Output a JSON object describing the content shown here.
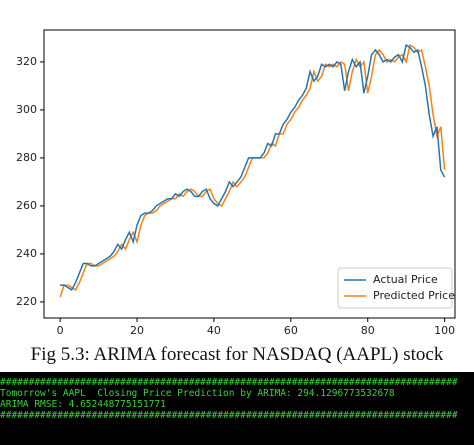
{
  "chart_data": {
    "type": "line",
    "x": [
      0,
      1,
      2,
      3,
      4,
      5,
      6,
      7,
      8,
      9,
      10,
      11,
      12,
      13,
      14,
      15,
      16,
      17,
      18,
      19,
      20,
      21,
      22,
      23,
      24,
      25,
      26,
      27,
      28,
      29,
      30,
      31,
      32,
      33,
      34,
      35,
      36,
      37,
      38,
      39,
      40,
      41,
      42,
      43,
      44,
      45,
      46,
      47,
      48,
      49,
      50,
      51,
      52,
      53,
      54,
      55,
      56,
      57,
      58,
      59,
      60,
      61,
      62,
      63,
      64,
      65,
      66,
      67,
      68,
      69,
      70,
      71,
      72,
      73,
      74,
      75,
      76,
      77,
      78,
      79,
      80,
      81,
      82,
      83,
      84,
      85,
      86,
      87,
      88,
      89,
      90,
      91,
      92,
      93,
      94,
      95,
      96,
      97,
      98,
      99,
      100
    ],
    "series": [
      {
        "name": "Actual Price",
        "color": "#1f77b4",
        "values": [
          227,
          227,
          226,
          225,
          228,
          232,
          236,
          236,
          235,
          235,
          236,
          237,
          238,
          239,
          241,
          244,
          242,
          246,
          249,
          245,
          252,
          256,
          257,
          257,
          258,
          260,
          261,
          262,
          263,
          263,
          265,
          264,
          266,
          267,
          266,
          264,
          264,
          266,
          267,
          263,
          261,
          260,
          263,
          266,
          270,
          268,
          270,
          272,
          276,
          280,
          280,
          280,
          280,
          282,
          286,
          285,
          290,
          290,
          294,
          296,
          299,
          301,
          304,
          306,
          309,
          316,
          312,
          314,
          319,
          318,
          319,
          318,
          320,
          319,
          308,
          316,
          321,
          318,
          320,
          307,
          314,
          323,
          325,
          323,
          320,
          321,
          320,
          322,
          323,
          320,
          327,
          326,
          324,
          325,
          318,
          310,
          298,
          289,
          293,
          275,
          272
        ]
      },
      {
        "name": "Predicted Price",
        "color": "#ff7f0e",
        "values": [
          222,
          227,
          227,
          226,
          225,
          228,
          232,
          236,
          236,
          235,
          235,
          236,
          237,
          238,
          239,
          241,
          244,
          242,
          246,
          249,
          245,
          252,
          256,
          257,
          257,
          258,
          260,
          261,
          262,
          263,
          263,
          265,
          264,
          266,
          267,
          266,
          264,
          264,
          266,
          267,
          263,
          261,
          260,
          263,
          266,
          270,
          268,
          270,
          272,
          276,
          280,
          280,
          280,
          280,
          282,
          286,
          285,
          290,
          290,
          294,
          296,
          299,
          301,
          304,
          306,
          309,
          316,
          312,
          314,
          319,
          318,
          319,
          318,
          320,
          319,
          308,
          316,
          321,
          318,
          320,
          307,
          314,
          323,
          325,
          323,
          320,
          321,
          320,
          322,
          323,
          320,
          327,
          326,
          324,
          325,
          318,
          310,
          298,
          289,
          293,
          275
        ]
      }
    ],
    "xlim": [
      -4.2,
      102.7
    ],
    "xticks": [
      0,
      20,
      40,
      60,
      80,
      100
    ],
    "ylim": [
      213.3,
      333.3
    ],
    "yticks": [
      220,
      240,
      260,
      280,
      300,
      320
    ],
    "legend": "lower right"
  },
  "caption": "Fig 5.3: ARIMA forecast for NASDAQ (AAPL) stock",
  "terminal": [
    "################################################################################",
    "Tomorrow's AAPL  Closing Price Prediction by ARIMA: 294.1296773532678",
    "ARIMA RMSE: 4.652448775151771",
    "################################################################################"
  ]
}
